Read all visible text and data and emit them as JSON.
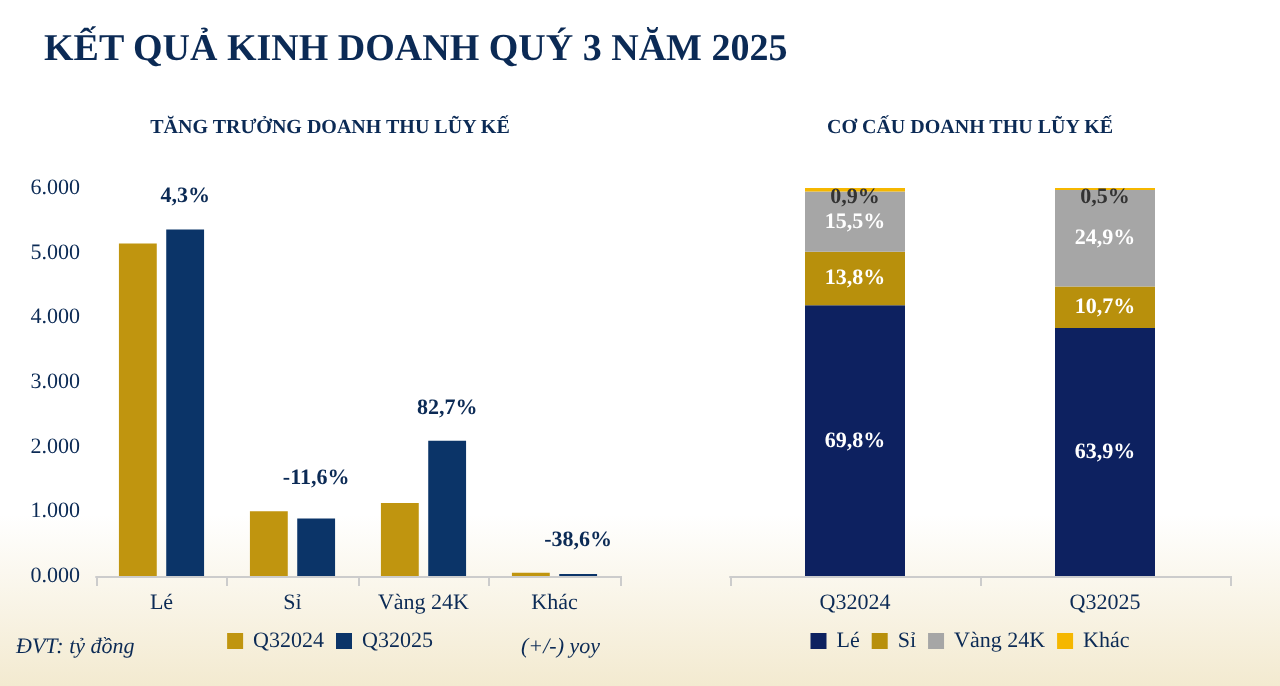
{
  "chart_data": [
    {
      "type": "bar",
      "title": "KẾT QUẢ KINH DOANH QUÝ 3 NĂM 2025",
      "subtitle": "TĂNG TRƯỞNG DOANH THU LŨY KẾ",
      "categories": [
        "Lé",
        "Sỉ",
        "Vàng 24K",
        "Khác"
      ],
      "series": [
        {
          "name": "Q32024",
          "color": "#c0950f",
          "values": [
            5140,
            1000,
            1130,
            50
          ]
        },
        {
          "name": "Q32025",
          "color": "#0b3468",
          "values": [
            5360,
            890,
            2090,
            30
          ]
        }
      ],
      "ylim": [
        0,
        6000
      ],
      "yticks": [
        {
          "value": 0,
          "label": "0.000"
        },
        {
          "value": 1000,
          "label": "1.000"
        },
        {
          "value": 2000,
          "label": "2.000"
        },
        {
          "value": 3000,
          "label": "3.000"
        },
        {
          "value": 4000,
          "label": "4.000"
        },
        {
          "value": 5000,
          "label": "5.000"
        },
        {
          "value": 6000,
          "label": "6.000"
        }
      ],
      "grid": false,
      "legend": "bottom",
      "annotations": [
        {
          "text": "4,3%",
          "x": "Lé",
          "y": 5360
        },
        {
          "text": "-11,6%",
          "x": "Sỉ",
          "y": 1000
        },
        {
          "text": "82,7%",
          "x": "Vàng 24K",
          "y": 2090
        },
        {
          "text": "-38,6%",
          "x": "Khác",
          "y": 50
        },
        "ĐVT: tỷ đồng",
        "(+/-) yoy"
      ]
    },
    {
      "type": "bar",
      "subtitle": "CƠ CẤU DOANH THU LŨY KẾ",
      "categories": [
        "Q32024",
        "Q32025"
      ],
      "stacked": true,
      "series": [
        {
          "name": "Lé",
          "color": "#0d2160",
          "values": [
            69.8,
            63.9
          ],
          "value_labels": [
            "69,8%",
            "63,9%"
          ]
        },
        {
          "name": "Sỉ",
          "color": "#b8900c",
          "values": [
            13.8,
            10.7
          ],
          "value_labels": [
            "13,8%",
            "10,7%"
          ]
        },
        {
          "name": "Vàng 24K",
          "color": "#a6a6a6",
          "values": [
            15.5,
            24.9
          ],
          "value_labels": [
            "15,5%",
            "24,9%"
          ]
        },
        {
          "name": "Khác",
          "color": "#f5b700",
          "values": [
            0.9,
            0.5
          ],
          "value_labels": [
            "0,9%",
            "0,5%"
          ]
        }
      ],
      "ylim": [
        0,
        100
      ],
      "tick_labels": "x",
      "grid": false,
      "legend": "bottom"
    }
  ]
}
